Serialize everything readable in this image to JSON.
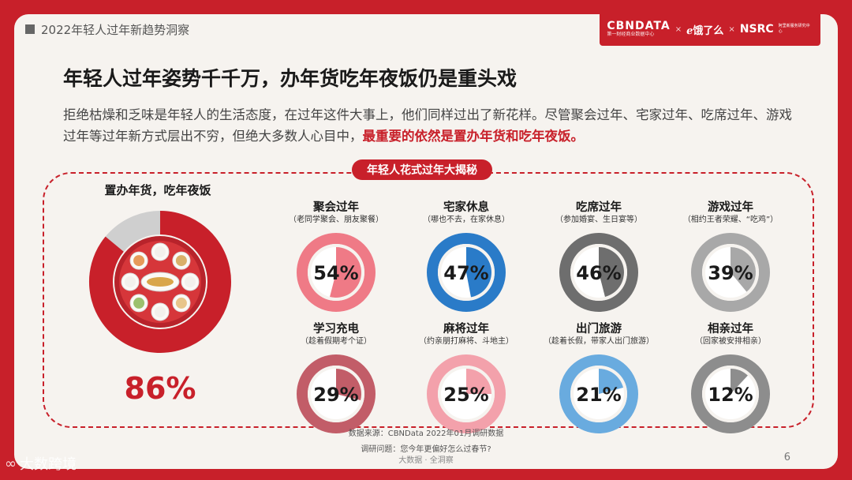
{
  "header": {
    "section": "2022年轻人过年新趋势洞察",
    "logo_cbn": "CBNDATA",
    "logo_cbn_sub": "第一财经商业数据中心",
    "logo_ele": "饿了么",
    "logo_nsrc": "NSRC",
    "logo_nsrc_sub": "阿里新服务研究中心"
  },
  "title": "年轻人过年姿势千千万，办年货吃年夜饭仍是重头戏",
  "description": {
    "text": "拒绝枯燥和乏味是年轻人的生活态度，在过年这件大事上，他们同样过出了新花样。尽管聚会过年、宅家过年、吃席过年、游戏过年等过年新方式层出不穷，但绝大多数人心目中，",
    "highlight": "最重要的依然是置办年货和吃年夜饭。"
  },
  "section_tag": "年轻人花式过年大揭秘",
  "colors": {
    "accent": "#c8202a",
    "track": "#cfcfcf"
  },
  "chart_data": {
    "type": "donut",
    "main": {
      "label": "置办年货，吃年夜饭",
      "value": 86,
      "display": "86%",
      "color": "#c8202a"
    },
    "items": [
      {
        "title": "聚会过年",
        "subtitle": "（老同学聚会、朋友聚餐）",
        "value": 54,
        "display": "54%",
        "color": "#ef7a86"
      },
      {
        "title": "宅家休息",
        "subtitle": "（哪也不去，在家休息）",
        "value": 47,
        "display": "47%",
        "color": "#2a7bc8"
      },
      {
        "title": "吃席过年",
        "subtitle": "（参加婚宴、生日宴等）",
        "value": 46,
        "display": "46%",
        "color": "#6e6e6e"
      },
      {
        "title": "游戏过年",
        "subtitle": "（相约王者荣耀、“吃鸡”）",
        "value": 39,
        "display": "39%",
        "color": "#a8a8a8"
      },
      {
        "title": "学习充电",
        "subtitle": "（趁着假期考个证）",
        "value": 29,
        "display": "29%",
        "color": "#c25d68"
      },
      {
        "title": "麻将过年",
        "subtitle": "（约亲朋打麻将、斗地主）",
        "value": 25,
        "display": "25%",
        "color": "#f3a1ab"
      },
      {
        "title": "出门旅游",
        "subtitle": "（趁着长假，带家人出门旅游）",
        "value": 21,
        "display": "21%",
        "color": "#69abdf"
      },
      {
        "title": "相亲过年",
        "subtitle": "（回家被安排相亲）",
        "value": 12,
        "display": "12%",
        "color": "#8d8d8d"
      }
    ]
  },
  "footer": {
    "source": "数据来源：CBNData 2022年01月调研数据",
    "question": "调研问题：您今年更偏好怎么过春节?",
    "brand": "大数据 · 全洞察",
    "page": "6",
    "watermark": "大数跨境"
  }
}
